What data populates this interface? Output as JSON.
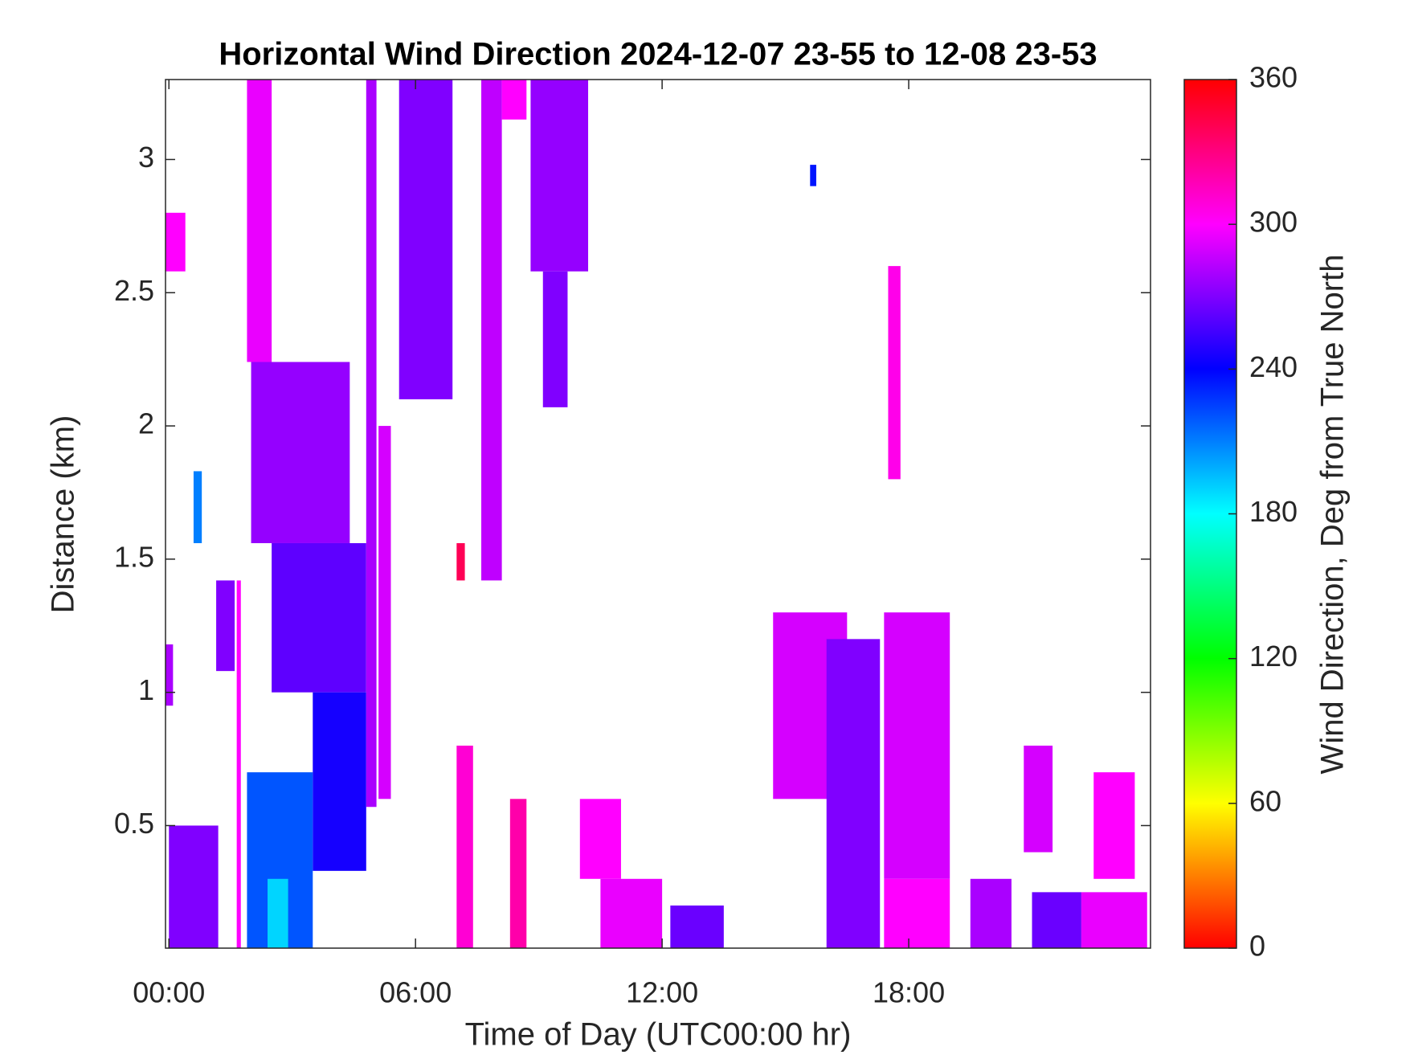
{
  "chart_data": {
    "type": "heatmap",
    "title": "Horizontal Wind Direction 2024-12-07 23-55 to 12-08 23-53",
    "x_label": "Time of Day (UTC00:00 hr)",
    "y_label": "Distance (km)",
    "colorbar_label": "Wind Direction, Deg from True North",
    "colormap": "hsv",
    "xlim": [
      -0.083,
      23.883
    ],
    "xticks": [
      {
        "value": 0,
        "label": "00:00"
      },
      {
        "value": 6,
        "label": "06:00"
      },
      {
        "value": 12,
        "label": "12:00"
      },
      {
        "value": 18,
        "label": "18:00"
      }
    ],
    "ylim": [
      0.04,
      3.3
    ],
    "yticks": [
      0.5,
      1,
      1.5,
      2,
      2.5,
      3
    ],
    "clim": [
      0,
      360
    ],
    "cticks": [
      0,
      60,
      120,
      180,
      240,
      300,
      360
    ],
    "cells": [
      {
        "x": [
          2.0,
          4.4
        ],
        "y": [
          1.56,
          2.24
        ],
        "value": 275
      },
      {
        "x": [
          1.9,
          2.5
        ],
        "y": [
          2.24,
          3.3
        ],
        "value": 295
      },
      {
        "x": [
          2.5,
          4.8
        ],
        "y": [
          1.0,
          1.56
        ],
        "value": 262
      },
      {
        "x": [
          3.5,
          4.8
        ],
        "y": [
          0.33,
          1.0
        ],
        "value": 245
      },
      {
        "x": [
          4.8,
          5.05
        ],
        "y": [
          0.57,
          3.3
        ],
        "value": 280
      },
      {
        "x": [
          5.1,
          5.4
        ],
        "y": [
          0.6,
          2.0
        ],
        "value": 290
      },
      {
        "x": [
          5.6,
          6.9
        ],
        "y": [
          2.1,
          3.3
        ],
        "value": 270
      },
      {
        "x": [
          7.6,
          8.1
        ],
        "y": [
          1.42,
          3.3
        ],
        "value": 285
      },
      {
        "x": [
          8.1,
          8.7
        ],
        "y": [
          3.15,
          3.3
        ],
        "value": 300
      },
      {
        "x": [
          8.8,
          10.2
        ],
        "y": [
          2.58,
          3.3
        ],
        "value": 275
      },
      {
        "x": [
          9.1,
          9.7
        ],
        "y": [
          2.07,
          2.58
        ],
        "value": 270
      },
      {
        "x": [
          -0.1,
          0.4
        ],
        "y": [
          2.58,
          2.8
        ],
        "value": 300
      },
      {
        "x": [
          1.15,
          1.6
        ],
        "y": [
          1.08,
          1.42
        ],
        "value": 270
      },
      {
        "x": [
          1.65,
          1.75
        ],
        "y": [
          0.04,
          1.42
        ],
        "value": 300
      },
      {
        "x": [
          10.0,
          11.0
        ],
        "y": [
          0.3,
          0.6
        ],
        "value": 300
      },
      {
        "x": [
          10.5,
          12.0
        ],
        "y": [
          0.04,
          0.3
        ],
        "value": 295
      },
      {
        "x": [
          12.2,
          13.5
        ],
        "y": [
          0.04,
          0.2
        ],
        "value": 265
      },
      {
        "x": [
          14.7,
          16.5
        ],
        "y": [
          0.6,
          1.3
        ],
        "value": 290
      },
      {
        "x": [
          16.0,
          17.3
        ],
        "y": [
          0.04,
          1.2
        ],
        "value": 270
      },
      {
        "x": [
          17.4,
          19.0
        ],
        "y": [
          0.3,
          1.3
        ],
        "value": 290
      },
      {
        "x": [
          17.4,
          19.0
        ],
        "y": [
          0.04,
          0.3
        ],
        "value": 300
      },
      {
        "x": [
          17.5,
          17.8
        ],
        "y": [
          1.8,
          2.6
        ],
        "value": 305
      },
      {
        "x": [
          19.5,
          20.5
        ],
        "y": [
          0.04,
          0.3
        ],
        "value": 280
      },
      {
        "x": [
          21.0,
          22.2
        ],
        "y": [
          0.04,
          0.25
        ],
        "value": 265
      },
      {
        "x": [
          22.2,
          23.8
        ],
        "y": [
          0.04,
          0.25
        ],
        "value": 295
      },
      {
        "x": [
          22.5,
          23.5
        ],
        "y": [
          0.3,
          0.7
        ],
        "value": 300
      },
      {
        "x": [
          20.8,
          21.5
        ],
        "y": [
          0.4,
          0.8
        ],
        "value": 290
      },
      {
        "x": [
          0.0,
          1.2
        ],
        "y": [
          0.04,
          0.5
        ],
        "value": 270
      },
      {
        "x": [
          1.9,
          3.5
        ],
        "y": [
          0.04,
          0.7
        ],
        "value": 220
      },
      {
        "x": [
          2.4,
          2.9
        ],
        "y": [
          0.04,
          0.3
        ],
        "value": 190
      },
      {
        "x": [
          7.0,
          7.4
        ],
        "y": [
          0.04,
          0.8
        ],
        "value": 310
      },
      {
        "x": [
          8.3,
          8.7
        ],
        "y": [
          0.04,
          0.6
        ],
        "value": 320
      },
      {
        "x": [
          0.6,
          0.8
        ],
        "y": [
          1.56,
          1.83
        ],
        "value": 210
      },
      {
        "x": [
          -0.1,
          0.1
        ],
        "y": [
          0.95,
          1.18
        ],
        "value": 280
      },
      {
        "x": [
          7.0,
          7.2
        ],
        "y": [
          1.42,
          1.56
        ],
        "value": 340
      },
      {
        "x": [
          15.6,
          15.75
        ],
        "y": [
          2.9,
          2.98
        ],
        "value": 235
      }
    ]
  }
}
